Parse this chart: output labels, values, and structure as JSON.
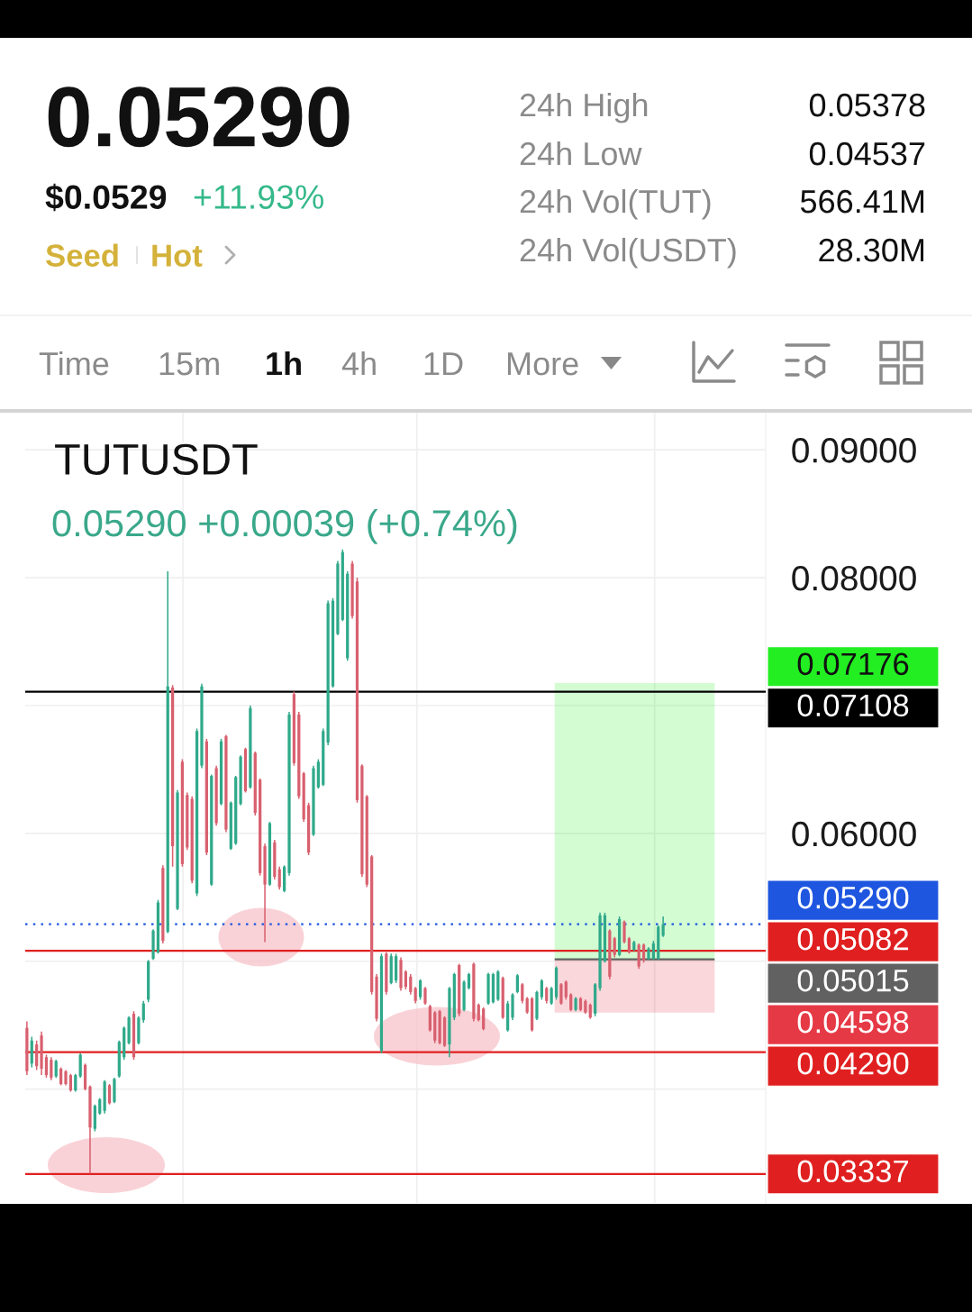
{
  "chart_data": {
    "type": "candlestick",
    "title": "TUTUSDT",
    "subtitle": "0.05290 +0.00039 (+0.74%)",
    "annotations": [
      "0.05290",
      "$0.0529",
      "+11.93%",
      "Seed",
      "Hot",
      "24h High",
      "0.05378",
      "24h Low",
      "0.04537",
      "24h Vol(TUT)",
      "566.41M",
      "24h Vol(USDT)",
      "28.30M",
      "Time",
      "15m",
      "1h",
      "4h",
      "1D",
      "More"
    ],
    "categories": [
      null,
      null,
      null,
      null,
      null,
      null,
      null,
      null,
      null,
      null,
      null,
      null,
      null,
      null,
      null,
      null,
      null,
      null,
      null,
      null,
      null,
      null,
      null,
      null,
      null,
      null,
      null,
      null,
      null,
      null,
      null,
      null,
      null,
      null,
      null,
      null,
      null,
      null,
      null,
      null,
      null,
      null,
      null,
      null,
      null,
      null,
      null,
      null,
      null,
      null,
      null,
      null,
      null,
      null,
      null,
      null,
      null,
      null,
      null,
      null,
      null,
      null,
      null,
      null,
      null,
      null,
      null,
      null,
      null,
      null,
      null,
      null,
      null,
      null,
      null,
      null,
      null,
      null,
      null,
      null,
      null,
      null,
      null,
      null,
      null,
      null,
      null,
      null,
      null,
      null,
      null,
      null,
      null,
      null,
      null,
      null,
      null,
      null,
      null,
      null,
      null,
      null,
      null,
      null,
      null,
      null,
      null,
      null,
      null,
      null,
      null,
      null,
      null,
      null,
      null,
      null,
      null,
      null,
      null,
      null,
      null,
      null,
      null,
      null,
      null,
      null,
      null,
      null,
      null,
      null,
      null,
      null
    ],
    "ohlc": [
      [
        0.0448,
        0.0453,
        0.0411,
        0.0414
      ],
      [
        0.042,
        0.0441,
        0.0417,
        0.0438
      ],
      [
        0.0435,
        0.0438,
        0.0415,
        0.0418
      ],
      [
        0.0442,
        0.0445,
        0.0411,
        0.0416
      ],
      [
        0.0425,
        0.0427,
        0.0409,
        0.0411
      ],
      [
        0.0423,
        0.0425,
        0.0407,
        0.0409
      ],
      [
        0.041,
        0.0423,
        0.0409,
        0.0422
      ],
      [
        0.0416,
        0.0417,
        0.0403,
        0.0404
      ],
      [
        0.0414,
        0.0415,
        0.0403,
        0.0404
      ],
      [
        0.0411,
        0.0412,
        0.0398,
        0.0399
      ],
      [
        0.0399,
        0.0412,
        0.0398,
        0.0411
      ],
      [
        0.041,
        0.0428,
        0.0409,
        0.0427
      ],
      [
        0.0419,
        0.042,
        0.0399,
        0.04
      ],
      [
        0.0402,
        0.0403,
        0.0334,
        0.037
      ],
      [
        0.0369,
        0.0388,
        0.0367,
        0.0387
      ],
      [
        0.0381,
        0.0393,
        0.038,
        0.0392
      ],
      [
        0.0383,
        0.0407,
        0.0381,
        0.0406
      ],
      [
        0.0403,
        0.0404,
        0.0388,
        0.0389
      ],
      [
        0.039,
        0.0409,
        0.0389,
        0.0408
      ],
      [
        0.041,
        0.0438,
        0.0409,
        0.0437
      ],
      [
        0.0425,
        0.0449,
        0.0423,
        0.0448
      ],
      [
        0.0436,
        0.0457,
        0.0435,
        0.0456
      ],
      [
        0.0459,
        0.0461,
        0.0423,
        0.0425
      ],
      [
        0.0436,
        0.0457,
        0.0435,
        0.0456
      ],
      [
        0.0454,
        0.0469,
        0.0452,
        0.0467
      ],
      [
        0.047,
        0.0501,
        0.0468,
        0.05
      ],
      [
        0.0502,
        0.0525,
        0.0501,
        0.0524
      ],
      [
        0.0507,
        0.0548,
        0.0506,
        0.0546
      ],
      [
        0.0573,
        0.0575,
        0.0514,
        0.0516
      ],
      [
        0.0523,
        0.0805,
        0.0522,
        0.0715
      ],
      [
        0.0714,
        0.0716,
        0.0574,
        0.059
      ],
      [
        0.0541,
        0.0634,
        0.054,
        0.0632
      ],
      [
        0.0656,
        0.0658,
        0.0574,
        0.0576
      ],
      [
        0.063,
        0.0632,
        0.0587,
        0.0589
      ],
      [
        0.0627,
        0.0629,
        0.0561,
        0.0563
      ],
      [
        0.0553,
        0.0682,
        0.0551,
        0.068
      ],
      [
        0.0653,
        0.0717,
        0.0651,
        0.0715
      ],
      [
        0.0672,
        0.0674,
        0.0583,
        0.0585
      ],
      [
        0.056,
        0.0646,
        0.0559,
        0.0645
      ],
      [
        0.0651,
        0.0653,
        0.0606,
        0.0608
      ],
      [
        0.0623,
        0.0674,
        0.0622,
        0.0672
      ],
      [
        0.0676,
        0.0677,
        0.0601,
        0.0603
      ],
      [
        0.0588,
        0.0625,
        0.0587,
        0.0624
      ],
      [
        0.0592,
        0.0645,
        0.0591,
        0.0644
      ],
      [
        0.0623,
        0.0661,
        0.0622,
        0.066
      ],
      [
        0.0666,
        0.0667,
        0.0632,
        0.0633
      ],
      [
        0.0636,
        0.07,
        0.0635,
        0.0698
      ],
      [
        0.0663,
        0.0664,
        0.0614,
        0.0616
      ],
      [
        0.0642,
        0.0643,
        0.0567,
        0.0569
      ],
      [
        0.059,
        0.0592,
        0.0515,
        0.056
      ],
      [
        0.056,
        0.0609,
        0.0559,
        0.0608
      ],
      [
        0.0593,
        0.0595,
        0.0564,
        0.0566
      ],
      [
        0.0572,
        0.0574,
        0.0556,
        0.0558
      ],
      [
        0.0555,
        0.0575,
        0.0554,
        0.0574
      ],
      [
        0.0569,
        0.0695,
        0.0567,
        0.0693
      ],
      [
        0.0709,
        0.0711,
        0.0653,
        0.0655
      ],
      [
        0.0693,
        0.0695,
        0.0627,
        0.0629
      ],
      [
        0.0647,
        0.0648,
        0.0609,
        0.0611
      ],
      [
        0.0622,
        0.0624,
        0.0583,
        0.0585
      ],
      [
        0.0599,
        0.0653,
        0.0598,
        0.0651
      ],
      [
        0.0636,
        0.0658,
        0.0635,
        0.0656
      ],
      [
        0.0638,
        0.0682,
        0.0637,
        0.068
      ],
      [
        0.0671,
        0.0782,
        0.0669,
        0.078
      ],
      [
        0.0715,
        0.0784,
        0.0714,
        0.0782
      ],
      [
        0.0756,
        0.0813,
        0.0755,
        0.0811
      ],
      [
        0.0767,
        0.0822,
        0.0766,
        0.082
      ],
      [
        0.0737,
        0.0805,
        0.0735,
        0.0803
      ],
      [
        0.0811,
        0.0813,
        0.0768,
        0.077
      ],
      [
        0.0797,
        0.08,
        0.0624,
        0.0626
      ],
      [
        0.0653,
        0.0654,
        0.0566,
        0.0568
      ],
      [
        0.0629,
        0.063,
        0.0558,
        0.056
      ],
      [
        0.0582,
        0.0583,
        0.0474,
        0.0476
      ],
      [
        0.0488,
        0.049,
        0.0453,
        0.0455
      ],
      [
        0.043,
        0.0506,
        0.0428,
        0.0504
      ],
      [
        0.0506,
        0.0507,
        0.0474,
        0.0476
      ],
      [
        0.0483,
        0.0506,
        0.0482,
        0.0504
      ],
      [
        0.0485,
        0.0506,
        0.0483,
        0.0504
      ],
      [
        0.0501,
        0.0503,
        0.0477,
        0.0479
      ],
      [
        0.0492,
        0.0493,
        0.0478,
        0.048
      ],
      [
        0.0488,
        0.049,
        0.0474,
        0.0476
      ],
      [
        0.0479,
        0.048,
        0.0467,
        0.0469
      ],
      [
        0.0472,
        0.0486,
        0.047,
        0.0485
      ],
      [
        0.0479,
        0.048,
        0.0466,
        0.0467
      ],
      [
        0.0465,
        0.0466,
        0.0445,
        0.0446
      ],
      [
        0.046,
        0.0461,
        0.0436,
        0.0438
      ],
      [
        0.0461,
        0.0462,
        0.0435,
        0.0436
      ],
      [
        0.0456,
        0.0457,
        0.0433,
        0.0434
      ],
      [
        0.0435,
        0.048,
        0.0425,
        0.0479
      ],
      [
        0.0456,
        0.0491,
        0.0454,
        0.049
      ],
      [
        0.0497,
        0.0498,
        0.0457,
        0.0459
      ],
      [
        0.0462,
        0.0485,
        0.0461,
        0.0484
      ],
      [
        0.0479,
        0.0491,
        0.0478,
        0.049
      ],
      [
        0.0498,
        0.0499,
        0.0453,
        0.0455
      ],
      [
        0.0466,
        0.0467,
        0.0453,
        0.0454
      ],
      [
        0.0463,
        0.0464,
        0.0446,
        0.0447
      ],
      [
        0.0467,
        0.0491,
        0.0466,
        0.049
      ],
      [
        0.0468,
        0.0491,
        0.0467,
        0.049
      ],
      [
        0.047,
        0.0493,
        0.0469,
        0.0492
      ],
      [
        0.0487,
        0.0488,
        0.0455,
        0.0456
      ],
      [
        0.0446,
        0.0469,
        0.0445,
        0.0467
      ],
      [
        0.0456,
        0.0475,
        0.0454,
        0.0474
      ],
      [
        0.0476,
        0.049,
        0.0475,
        0.0489
      ],
      [
        0.0482,
        0.0483,
        0.0467,
        0.0469
      ],
      [
        0.0471,
        0.0472,
        0.0459,
        0.046
      ],
      [
        0.0471,
        0.0472,
        0.0445,
        0.0446
      ],
      [
        0.0455,
        0.0477,
        0.0454,
        0.0476
      ],
      [
        0.0472,
        0.0486,
        0.047,
        0.0485
      ],
      [
        0.0479,
        0.048,
        0.0467,
        0.0469
      ],
      [
        0.0467,
        0.048,
        0.0466,
        0.0479
      ],
      [
        0.0472,
        0.0496,
        0.047,
        0.0495
      ],
      [
        0.0482,
        0.0483,
        0.0466,
        0.0467
      ],
      [
        0.0484,
        0.0485,
        0.047,
        0.0472
      ],
      [
        0.0474,
        0.0475,
        0.0461,
        0.0462
      ],
      [
        0.0462,
        0.0472,
        0.0461,
        0.0471
      ],
      [
        0.0471,
        0.0472,
        0.0461,
        0.0462
      ],
      [
        0.0469,
        0.047,
        0.0459,
        0.046
      ],
      [
        0.0466,
        0.0467,
        0.0455,
        0.0456
      ],
      [
        0.0459,
        0.0483,
        0.0457,
        0.0482
      ],
      [
        0.0479,
        0.0538,
        0.0477,
        0.0536
      ],
      [
        0.05,
        0.0538,
        0.0499,
        0.0536
      ],
      [
        0.0524,
        0.0525,
        0.0486,
        0.0488
      ],
      [
        0.0518,
        0.0519,
        0.0503,
        0.0505
      ],
      [
        0.0505,
        0.0535,
        0.0504,
        0.0533
      ],
      [
        0.0531,
        0.0532,
        0.0514,
        0.0515
      ],
      [
        0.0518,
        0.0519,
        0.0506,
        0.0507
      ],
      [
        0.0509,
        0.0516,
        0.0508,
        0.0515
      ],
      [
        0.0513,
        0.0514,
        0.0494,
        0.0496
      ],
      [
        0.0513,
        0.0514,
        0.0499,
        0.0501
      ],
      [
        0.0502,
        0.0511,
        0.0501,
        0.051
      ],
      [
        0.0502,
        0.0516,
        0.0501,
        0.0514
      ],
      [
        0.0502,
        0.0528,
        0.0501,
        0.0527
      ],
      [
        0.052,
        0.0535,
        0.0519,
        0.0529
      ]
    ],
    "colors": [
      "#d8606f",
      "#2fa98a",
      "#d8606f",
      "#d8606f",
      "#d8606f",
      "#d8606f",
      "#2fa98a",
      "#d8606f",
      "#d8606f",
      "#d8606f",
      "#2fa98a",
      "#2fa98a",
      "#d8606f",
      "#d8606f",
      "#2fa98a",
      "#2fa98a",
      "#2fa98a",
      "#d8606f",
      "#2fa98a",
      "#2fa98a",
      "#2fa98a",
      "#2fa98a",
      "#d8606f",
      "#2fa98a",
      "#2fa98a",
      "#2fa98a",
      "#2fa98a",
      "#2fa98a",
      "#d8606f",
      "#2fa98a",
      "#d8606f",
      "#2fa98a",
      "#d8606f",
      "#d8606f",
      "#d8606f",
      "#2fa98a",
      "#2fa98a",
      "#d8606f",
      "#2fa98a",
      "#d8606f",
      "#2fa98a",
      "#d8606f",
      "#2fa98a",
      "#2fa98a",
      "#2fa98a",
      "#d8606f",
      "#2fa98a",
      "#d8606f",
      "#d8606f",
      "#d8606f",
      "#2fa98a",
      "#d8606f",
      "#d8606f",
      "#2fa98a",
      "#2fa98a",
      "#d8606f",
      "#d8606f",
      "#d8606f",
      "#d8606f",
      "#2fa98a",
      "#2fa98a",
      "#2fa98a",
      "#2fa98a",
      "#2fa98a",
      "#2fa98a",
      "#2fa98a",
      "#2fa98a",
      "#d8606f",
      "#d8606f",
      "#d8606f",
      "#d8606f",
      "#d8606f",
      "#d8606f",
      "#2fa98a",
      "#d8606f",
      "#2fa98a",
      "#2fa98a",
      "#d8606f",
      "#d8606f",
      "#d8606f",
      "#d8606f",
      "#2fa98a",
      "#d8606f",
      "#d8606f",
      "#d8606f",
      "#d8606f",
      "#d8606f",
      "#2fa98a",
      "#2fa98a",
      "#d8606f",
      "#2fa98a",
      "#2fa98a",
      "#d8606f",
      "#d8606f",
      "#d8606f",
      "#2fa98a",
      "#2fa98a",
      "#2fa98a",
      "#d8606f",
      "#2fa98a",
      "#2fa98a",
      "#2fa98a",
      "#d8606f",
      "#d8606f",
      "#d8606f",
      "#2fa98a",
      "#2fa98a",
      "#d8606f",
      "#2fa98a",
      "#2fa98a",
      "#d8606f",
      "#d8606f",
      "#d8606f",
      "#2fa98a",
      "#d8606f",
      "#d8606f",
      "#d8606f",
      "#2fa98a",
      "#2fa98a",
      "#2fa98a",
      "#d8606f",
      "#d8606f",
      "#2fa98a",
      "#d8606f",
      "#d8606f",
      "#2fa98a",
      "#d8606f",
      "#d8606f",
      "#2fa98a",
      "#2fa98a",
      "#2fa98a",
      "#2fa98a"
    ],
    "ylim": [
      0.0311,
      0.0929
    ],
    "yticks": [
      {
        "value": 0.09,
        "label": "0.09000"
      },
      {
        "value": 0.08,
        "label": "0.08000"
      },
      {
        "value": 0.07,
        "label": null
      },
      {
        "value": 0.06,
        "label": "0.06000"
      },
      {
        "value": 0.05,
        "label": null
      },
      {
        "value": 0.04,
        "label": null
      }
    ],
    "tick_labels": "y",
    "grid": true,
    "ref_lines": [
      {
        "axis": "y",
        "value": 0.07108,
        "label": "0.07108",
        "color": "#000000",
        "line_style": "solid"
      },
      {
        "axis": "y",
        "value": 0.0529,
        "label": "0.05290",
        "color": "#1e56e0",
        "line_style": "dotted"
      },
      {
        "axis": "y",
        "value": 0.05082,
        "label": "0.05082",
        "color": "#e02020",
        "line_style": "solid"
      },
      {
        "axis": "y",
        "value": 0.05015,
        "label": "0.05015",
        "color": "#616161",
        "line_style": "solid"
      },
      {
        "axis": "y",
        "value": 0.0429,
        "label": "0.04290",
        "color": "#e02020",
        "line_style": "solid"
      },
      {
        "axis": "y",
        "value": 0.03337,
        "label": "0.03337",
        "color": "#e02020",
        "line_style": "solid"
      }
    ],
    "bands": [
      {
        "axis": "y",
        "from": 0.05015,
        "to": 0.07176,
        "label": "0.07176",
        "color": "#22ee22"
      },
      {
        "axis": "y",
        "from": 0.04598,
        "to": 0.05015,
        "label": "0.04598",
        "color": "#e63946"
      }
    ]
  }
}
